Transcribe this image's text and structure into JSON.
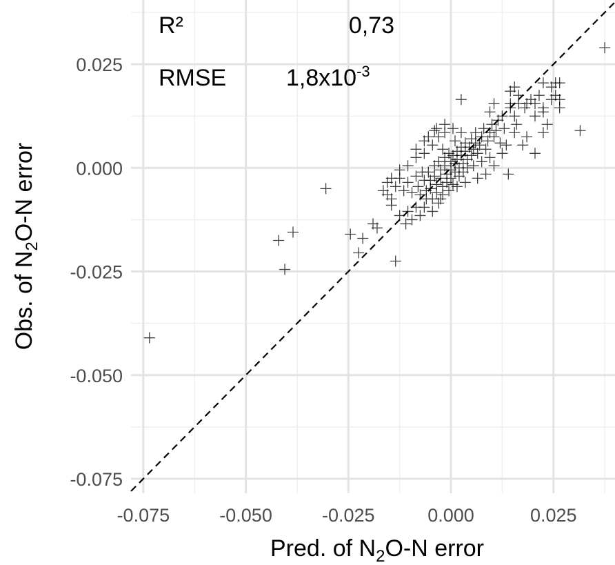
{
  "chart_data": {
    "type": "scatter",
    "title": "",
    "xlabel": {
      "pre": "Pred. of N",
      "sub": "2",
      "post": "O-N error"
    },
    "ylabel": {
      "pre": "Obs. of N",
      "sub": "2",
      "post": "O-N error"
    },
    "xlim": [
      -0.078,
      0.04
    ],
    "ylim": [
      -0.0785,
      0.0405
    ],
    "x_ticks": [
      -0.075,
      -0.05,
      -0.025,
      0.0,
      0.025
    ],
    "x_tick_labels": [
      "-0.075",
      "-0.050",
      "-0.025",
      "0.000",
      "0.025"
    ],
    "y_ticks": [
      -0.075,
      -0.05,
      -0.025,
      0.0,
      0.025
    ],
    "y_tick_labels": [
      "-0.075",
      "-0.050",
      "-0.025",
      "0.000",
      "0.025"
    ],
    "grid": true,
    "reference_line": {
      "type": "identity",
      "style": "dashed"
    },
    "marker": "plus",
    "marker_color": "#000000",
    "annotations": {
      "r2_label": "R²",
      "r2_value": "0,73",
      "rmse_label": "RMSE",
      "rmse_value_base": "1,8x10",
      "rmse_value_exp": "-3"
    },
    "points": [
      [
        -0.0735,
        -0.041
      ],
      [
        -0.042,
        -0.0175
      ],
      [
        -0.0385,
        -0.0155
      ],
      [
        -0.0405,
        -0.0245
      ],
      [
        -0.0305,
        -0.005
      ],
      [
        -0.0245,
        -0.016
      ],
      [
        -0.0215,
        -0.017
      ],
      [
        -0.019,
        -0.0135
      ],
      [
        -0.0225,
        -0.0205
      ],
      [
        -0.0135,
        -0.0225
      ],
      [
        -0.018,
        -0.0145
      ],
      [
        -0.0145,
        -0.009
      ],
      [
        -0.0125,
        -0.0115
      ],
      [
        -0.011,
        -0.0135
      ],
      [
        -0.0095,
        -0.0125
      ],
      [
        -0.0135,
        -0.0045
      ],
      [
        -0.0125,
        -0.0025
      ],
      [
        -0.0115,
        -0.0055
      ],
      [
        -0.0105,
        -0.0035
      ],
      [
        -0.0095,
        -0.006
      ],
      [
        -0.0085,
        -0.002
      ],
      [
        -0.008,
        -0.0045
      ],
      [
        -0.0075,
        -0.0065
      ],
      [
        -0.007,
        -0.001
      ],
      [
        -0.0065,
        -0.003
      ],
      [
        -0.006,
        -0.0055
      ],
      [
        -0.006,
        -0.0075
      ],
      [
        -0.0055,
        -0.001
      ],
      [
        -0.005,
        -0.003
      ],
      [
        -0.005,
        -0.005
      ],
      [
        -0.0045,
        -0.0075
      ],
      [
        -0.004,
        0.0005
      ],
      [
        -0.004,
        -0.002
      ],
      [
        -0.0035,
        -0.004
      ],
      [
        -0.0035,
        -0.006
      ],
      [
        -0.003,
        -0.0085
      ],
      [
        -0.003,
        0.0015
      ],
      [
        -0.0025,
        -0.0005
      ],
      [
        -0.0025,
        -0.0025
      ],
      [
        -0.002,
        -0.0045
      ],
      [
        -0.002,
        -0.0065
      ],
      [
        -0.0015,
        0.0025
      ],
      [
        -0.0015,
        0.0005
      ],
      [
        -0.001,
        -0.0015
      ],
      [
        -0.001,
        -0.0035
      ],
      [
        -0.0005,
        -0.0055
      ],
      [
        -0.0005,
        0.0035
      ],
      [
        0.0,
        0.0015
      ],
      [
        0.0,
        -0.0005
      ],
      [
        0.0,
        -0.0025
      ],
      [
        0.0005,
        -0.004
      ],
      [
        0.0005,
        0.003
      ],
      [
        0.001,
        0.001
      ],
      [
        0.001,
        -0.001
      ],
      [
        0.0015,
        0.004
      ],
      [
        0.0015,
        0.002
      ],
      [
        0.002,
        0.0
      ],
      [
        0.002,
        -0.002
      ],
      [
        0.0025,
        0.005
      ],
      [
        0.0025,
        0.003
      ],
      [
        0.003,
        0.001
      ],
      [
        0.003,
        -0.001
      ],
      [
        0.0035,
        0.006
      ],
      [
        0.0035,
        0.004
      ],
      [
        0.004,
        0.002
      ],
      [
        0.004,
        0.0
      ],
      [
        0.0045,
        0.005
      ],
      [
        0.005,
        0.007
      ],
      [
        0.005,
        0.003
      ],
      [
        0.0055,
        0.0045
      ],
      [
        0.006,
        0.006
      ],
      [
        0.006,
        0.0085
      ],
      [
        0.0065,
        0.0035
      ],
      [
        0.007,
        0.0055
      ],
      [
        0.0075,
        0.0075
      ],
      [
        0.008,
        0.0095
      ],
      [
        0.0085,
        0.0045
      ],
      [
        0.009,
        0.0065
      ],
      [
        0.0095,
        0.0085
      ],
      [
        0.01,
        0.0105
      ],
      [
        0.0105,
        0.0075
      ],
      [
        0.011,
        0.009
      ],
      [
        0.0115,
        0.0115
      ],
      [
        0.012,
        0.006
      ],
      [
        -0.0065,
        0.0035
      ],
      [
        -0.0045,
        0.0055
      ],
      [
        -0.003,
        0.0075
      ],
      [
        -0.0015,
        0.0085
      ],
      [
        -0.004,
        0.009
      ],
      [
        -0.002,
        0.0045
      ],
      [
        0.001,
        0.0065
      ],
      [
        0.0025,
        0.0085
      ],
      [
        -0.0085,
        0.0025
      ],
      [
        -0.0105,
        0.0005
      ],
      [
        -0.0125,
        -0.0005
      ],
      [
        -0.0145,
        -0.0025
      ],
      [
        -0.0155,
        -0.0035
      ],
      [
        -0.0165,
        -0.0055
      ],
      [
        -0.0155,
        -0.0065
      ],
      [
        -0.0145,
        -0.0075
      ],
      [
        -0.0065,
        -0.0095
      ],
      [
        -0.0045,
        -0.0105
      ],
      [
        -0.0025,
        -0.0075
      ],
      [
        -0.0085,
        -0.0095
      ],
      [
        -0.0075,
        -0.0115
      ],
      [
        -0.0105,
        -0.0105
      ],
      [
        0.0015,
        -0.0045
      ],
      [
        0.0035,
        -0.0035
      ],
      [
        0.0055,
        0.0005
      ],
      [
        0.0075,
        0.0015
      ],
      [
        0.0095,
        0.0025
      ],
      [
        0.0065,
        -0.0025
      ],
      [
        0.0085,
        -0.0015
      ],
      [
        0.0105,
        0.0005
      ],
      [
        0.0125,
        0.0035
      ],
      [
        0.0135,
        0.0055
      ],
      [
        0.014,
        -0.0015
      ],
      [
        0.0175,
        0.0055
      ],
      [
        0.0205,
        0.0035
      ],
      [
        0.0155,
        0.0085
      ],
      [
        0.0185,
        0.0075
      ],
      [
        0.0225,
        0.0085
      ],
      [
        0.013,
        0.0095
      ],
      [
        0.016,
        0.0105
      ],
      [
        0.0205,
        0.0125
      ],
      [
        0.0195,
        0.0165
      ],
      [
        0.0205,
        0.0155
      ],
      [
        0.018,
        0.0145
      ],
      [
        0.0165,
        0.0155
      ],
      [
        0.0145,
        0.0145
      ],
      [
        0.0155,
        0.0125
      ],
      [
        0.0225,
        0.0135
      ],
      [
        0.0235,
        0.0105
      ],
      [
        0.0245,
        0.0165
      ],
      [
        0.0255,
        0.0175
      ],
      [
        0.0265,
        0.0145
      ],
      [
        0.0225,
        0.0205
      ],
      [
        0.0245,
        0.0195
      ],
      [
        0.0255,
        0.0205
      ],
      [
        0.0265,
        0.0205
      ],
      [
        0.0225,
        0.0145
      ],
      [
        0.0265,
        0.0165
      ],
      [
        0.0315,
        0.009
      ],
      [
        0.0375,
        0.029
      ],
      [
        0.0165,
        0.0175
      ],
      [
        0.0145,
        0.0185
      ],
      [
        0.0155,
        0.0195
      ],
      [
        0.0025,
        0.0165
      ],
      [
        0.0145,
        0.0155
      ],
      [
        0.0185,
        0.0155
      ],
      [
        0.0215,
        0.0175
      ],
      [
        0.0095,
        0.0135
      ],
      [
        0.0125,
        0.0125
      ],
      [
        0.0105,
        0.0155
      ],
      [
        -0.0055,
        0.0075
      ],
      [
        -0.0035,
        0.0095
      ],
      [
        -0.0015,
        0.0105
      ],
      [
        0.0005,
        0.0095
      ],
      [
        -0.0085,
        0.0045
      ],
      [
        -0.0065,
        0.0065
      ]
    ]
  }
}
